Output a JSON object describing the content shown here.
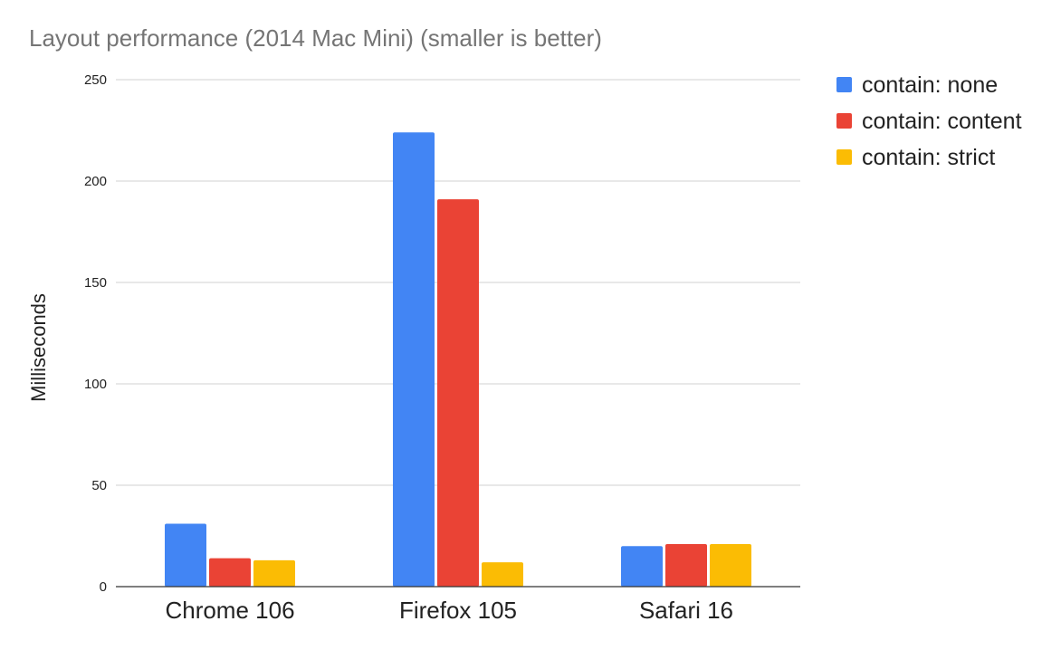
{
  "chart_data": {
    "type": "bar",
    "title": "Layout performance (2014 Mac Mini) (smaller is better)",
    "xlabel": "",
    "ylabel": "Milliseconds",
    "categories": [
      "Chrome 106",
      "Firefox 105",
      "Safari 16"
    ],
    "series": [
      {
        "name": "contain: none",
        "color": "#4285f4",
        "values": [
          31,
          224,
          20
        ]
      },
      {
        "name": "contain: content",
        "color": "#ea4335",
        "values": [
          14,
          191,
          21
        ]
      },
      {
        "name": "contain: strict",
        "color": "#fbbc04",
        "values": [
          13,
          12,
          21
        ]
      }
    ],
    "ylim": [
      0,
      250
    ],
    "yticks": [
      0,
      50,
      100,
      150,
      200,
      250
    ],
    "grid": true,
    "legend_position": "top-right"
  }
}
